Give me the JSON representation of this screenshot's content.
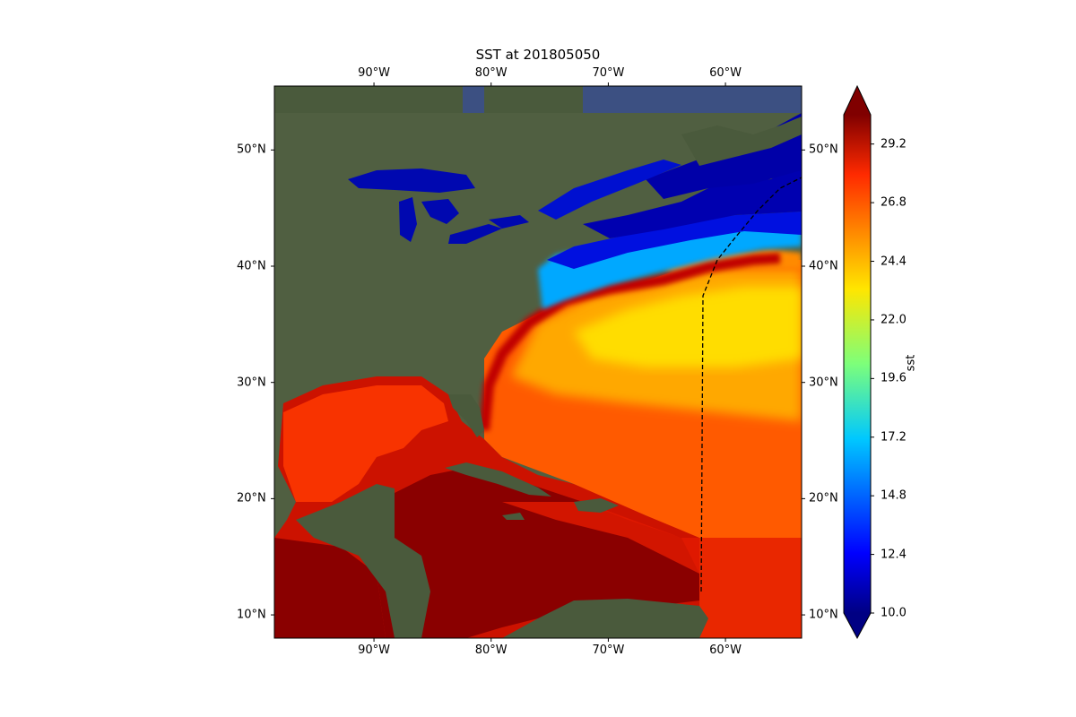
{
  "map": {
    "title": "SST at 201805050",
    "lon_ticks": [
      {
        "label": "90°W",
        "value": -90
      },
      {
        "label": "80°W",
        "value": -80
      },
      {
        "label": "70°W",
        "value": -70
      },
      {
        "label": "60°W",
        "value": -60
      }
    ],
    "lat_ticks": [
      {
        "label": "50°N",
        "value": 50
      },
      {
        "label": "40°N",
        "value": 40
      },
      {
        "label": "30°N",
        "value": 30
      },
      {
        "label": "20°N",
        "value": 20
      },
      {
        "label": "10°N",
        "value": 10
      }
    ],
    "extent": {
      "lon_min": -98.5,
      "lon_max": -53.5,
      "lat_min": 8,
      "lat_max": 55.5
    }
  },
  "colorbar": {
    "label": "sst",
    "ticks": [
      "29.2",
      "26.8",
      "24.4",
      "22.0",
      "19.6",
      "17.2",
      "14.8",
      "12.4",
      "10.0"
    ],
    "min": 10.0,
    "max": 30.4,
    "colormap": "jet",
    "extend": "both"
  }
}
